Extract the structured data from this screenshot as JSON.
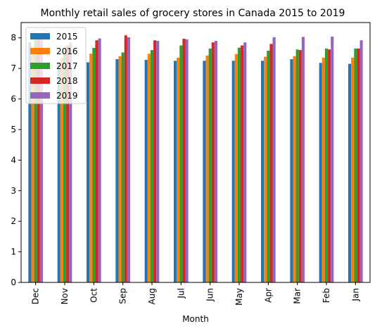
{
  "chart_data": {
    "type": "bar",
    "title": "Monthly retail sales of grocery stores in Canada 2015 to 2019",
    "xlabel": "Month",
    "ylabel": "",
    "ylim": [
      0,
      8.5
    ],
    "yticks": [
      0,
      1,
      2,
      3,
      4,
      5,
      6,
      7,
      8
    ],
    "categories": [
      "Dec",
      "Nov",
      "Oct",
      "Sep",
      "Aug",
      "Jul",
      "Jun",
      "May",
      "Apr",
      "Mar",
      "Feb",
      "Jan"
    ],
    "series": [
      {
        "name": "2015",
        "color": "#1f77b4",
        "values": [
          7.85,
          7.2,
          7.2,
          7.3,
          7.28,
          7.25,
          7.25,
          7.25,
          7.25,
          7.3,
          7.18,
          7.15
        ]
      },
      {
        "name": "2016",
        "color": "#ff7f0e",
        "values": [
          7.65,
          7.35,
          7.48,
          7.4,
          7.48,
          7.35,
          7.42,
          7.47,
          7.38,
          7.4,
          7.35,
          7.35
        ]
      },
      {
        "name": "2017",
        "color": "#2ca02c",
        "values": [
          8.0,
          7.6,
          7.67,
          7.52,
          7.6,
          7.75,
          7.65,
          7.68,
          7.58,
          7.62,
          7.65,
          7.65
        ]
      },
      {
        "name": "2018",
        "color": "#d62728",
        "values": [
          8.05,
          7.75,
          7.92,
          8.08,
          7.92,
          7.97,
          7.85,
          7.75,
          7.8,
          7.6,
          7.62,
          7.65
        ]
      },
      {
        "name": "2019",
        "color": "#9467bd",
        "values": [
          8.15,
          7.85,
          7.98,
          8.02,
          7.9,
          7.95,
          7.9,
          7.85,
          8.02,
          8.03,
          8.04,
          7.92
        ]
      }
    ],
    "legend_position": "top-left",
    "grid": false
  }
}
